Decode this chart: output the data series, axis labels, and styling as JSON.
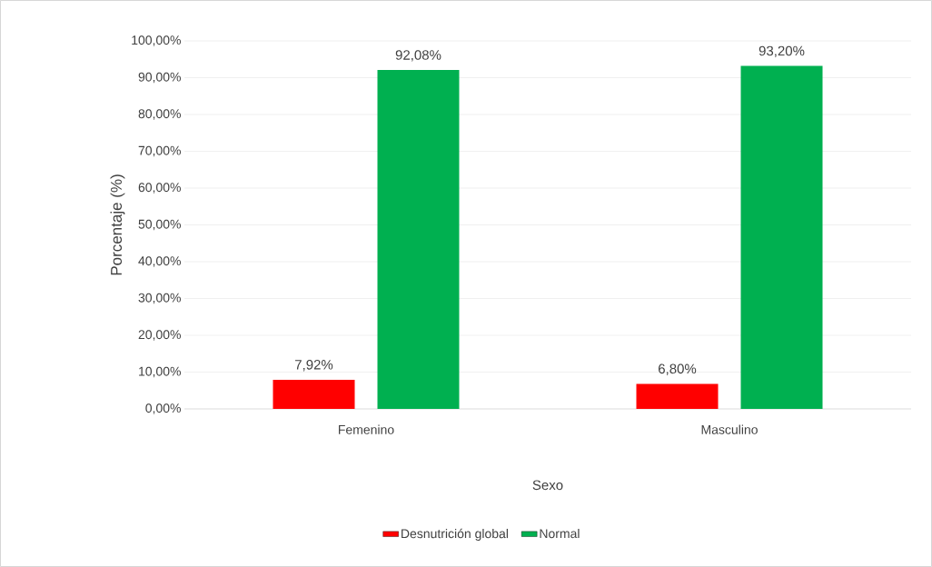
{
  "chart_data": {
    "type": "bar",
    "xlabel": "Sexo",
    "ylabel": "Porcentaje (%)",
    "categories": [
      "Femenino",
      "Masculino"
    ],
    "series": [
      {
        "name": "Desnutrición global",
        "color": "#ff0000",
        "values": [
          7.92,
          6.8
        ],
        "value_labels": [
          "7,92%",
          "6,80%"
        ]
      },
      {
        "name": "Normal",
        "color": "#00b050",
        "values": [
          92.08,
          93.2
        ],
        "value_labels": [
          "92,08%",
          "93,20%"
        ]
      }
    ],
    "ylim": [
      0,
      100
    ],
    "yticks": [
      {
        "value": 0,
        "label": "0,00%"
      },
      {
        "value": 10,
        "label": "10,00%"
      },
      {
        "value": 20,
        "label": "20,00%"
      },
      {
        "value": 30,
        "label": "30,00%"
      },
      {
        "value": 40,
        "label": "40,00%"
      },
      {
        "value": 50,
        "label": "50,00%"
      },
      {
        "value": 60,
        "label": "60,00%"
      },
      {
        "value": 70,
        "label": "70,00%"
      },
      {
        "value": 80,
        "label": "80,00%"
      },
      {
        "value": 90,
        "label": "90,00%"
      },
      {
        "value": 100,
        "label": "100,00%"
      }
    ],
    "grid": "y",
    "legend": "bottom"
  }
}
